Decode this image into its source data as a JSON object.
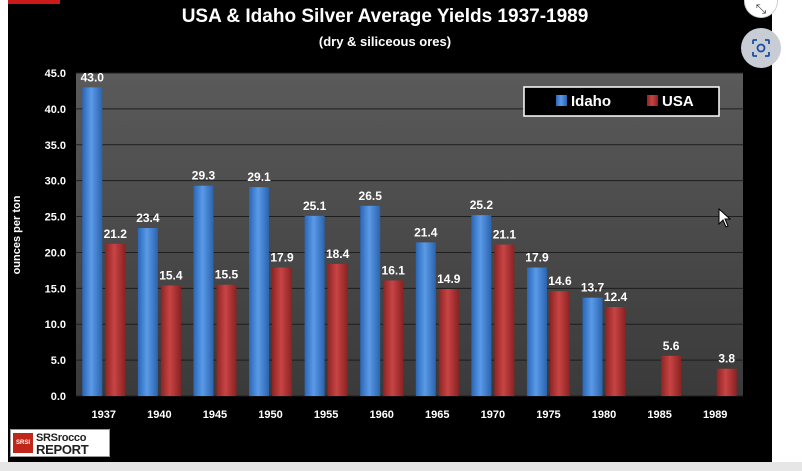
{
  "chart_data": {
    "type": "bar",
    "title": "USA & Idaho Silver Average Yields 1937-1989",
    "subtitle": "(dry & siliceous ores)",
    "xlabel": "",
    "ylabel": "ounces per ton",
    "ylim": [
      0,
      45
    ],
    "yticks": [
      "0.0",
      "5.0",
      "10.0",
      "15.0",
      "20.0",
      "25.0",
      "30.0",
      "35.0",
      "40.0",
      "45.0"
    ],
    "grid": true,
    "legend_position": "top-right",
    "categories": [
      "1937",
      "1940",
      "1945",
      "1950",
      "1955",
      "1960",
      "1965",
      "1970",
      "1975",
      "1980",
      "1985",
      "1989"
    ],
    "series": [
      {
        "name": "Idaho",
        "color": "#3a7fd4",
        "values": [
          43.0,
          23.4,
          29.3,
          29.1,
          25.1,
          26.5,
          21.4,
          25.2,
          17.9,
          13.7,
          null,
          null
        ],
        "labels": [
          "43.0",
          "23.4",
          "29.3",
          "29.1",
          "25.1",
          "26.5",
          "21.4",
          "25.2",
          "17.9",
          "13.7",
          "",
          ""
        ]
      },
      {
        "name": "USA",
        "color": "#b23232",
        "values": [
          21.2,
          15.4,
          15.5,
          17.9,
          18.4,
          16.1,
          14.9,
          21.1,
          14.6,
          12.4,
          5.6,
          3.8
        ],
        "labels": [
          "21.2",
          "15.4",
          "15.5",
          "17.9",
          "18.4",
          "16.1",
          "14.9",
          "21.1",
          "14.6",
          "12.4",
          "5.6",
          "3.8"
        ]
      }
    ]
  },
  "logo": {
    "badge": "SRSI",
    "line1": "SRSrocco",
    "line2": "REPORT"
  },
  "overlay": {
    "corner_button_icon": "collapse-arrow-icon",
    "corner_button_glyph": "⤡",
    "lens_button_icon": "lens-search-icon"
  }
}
